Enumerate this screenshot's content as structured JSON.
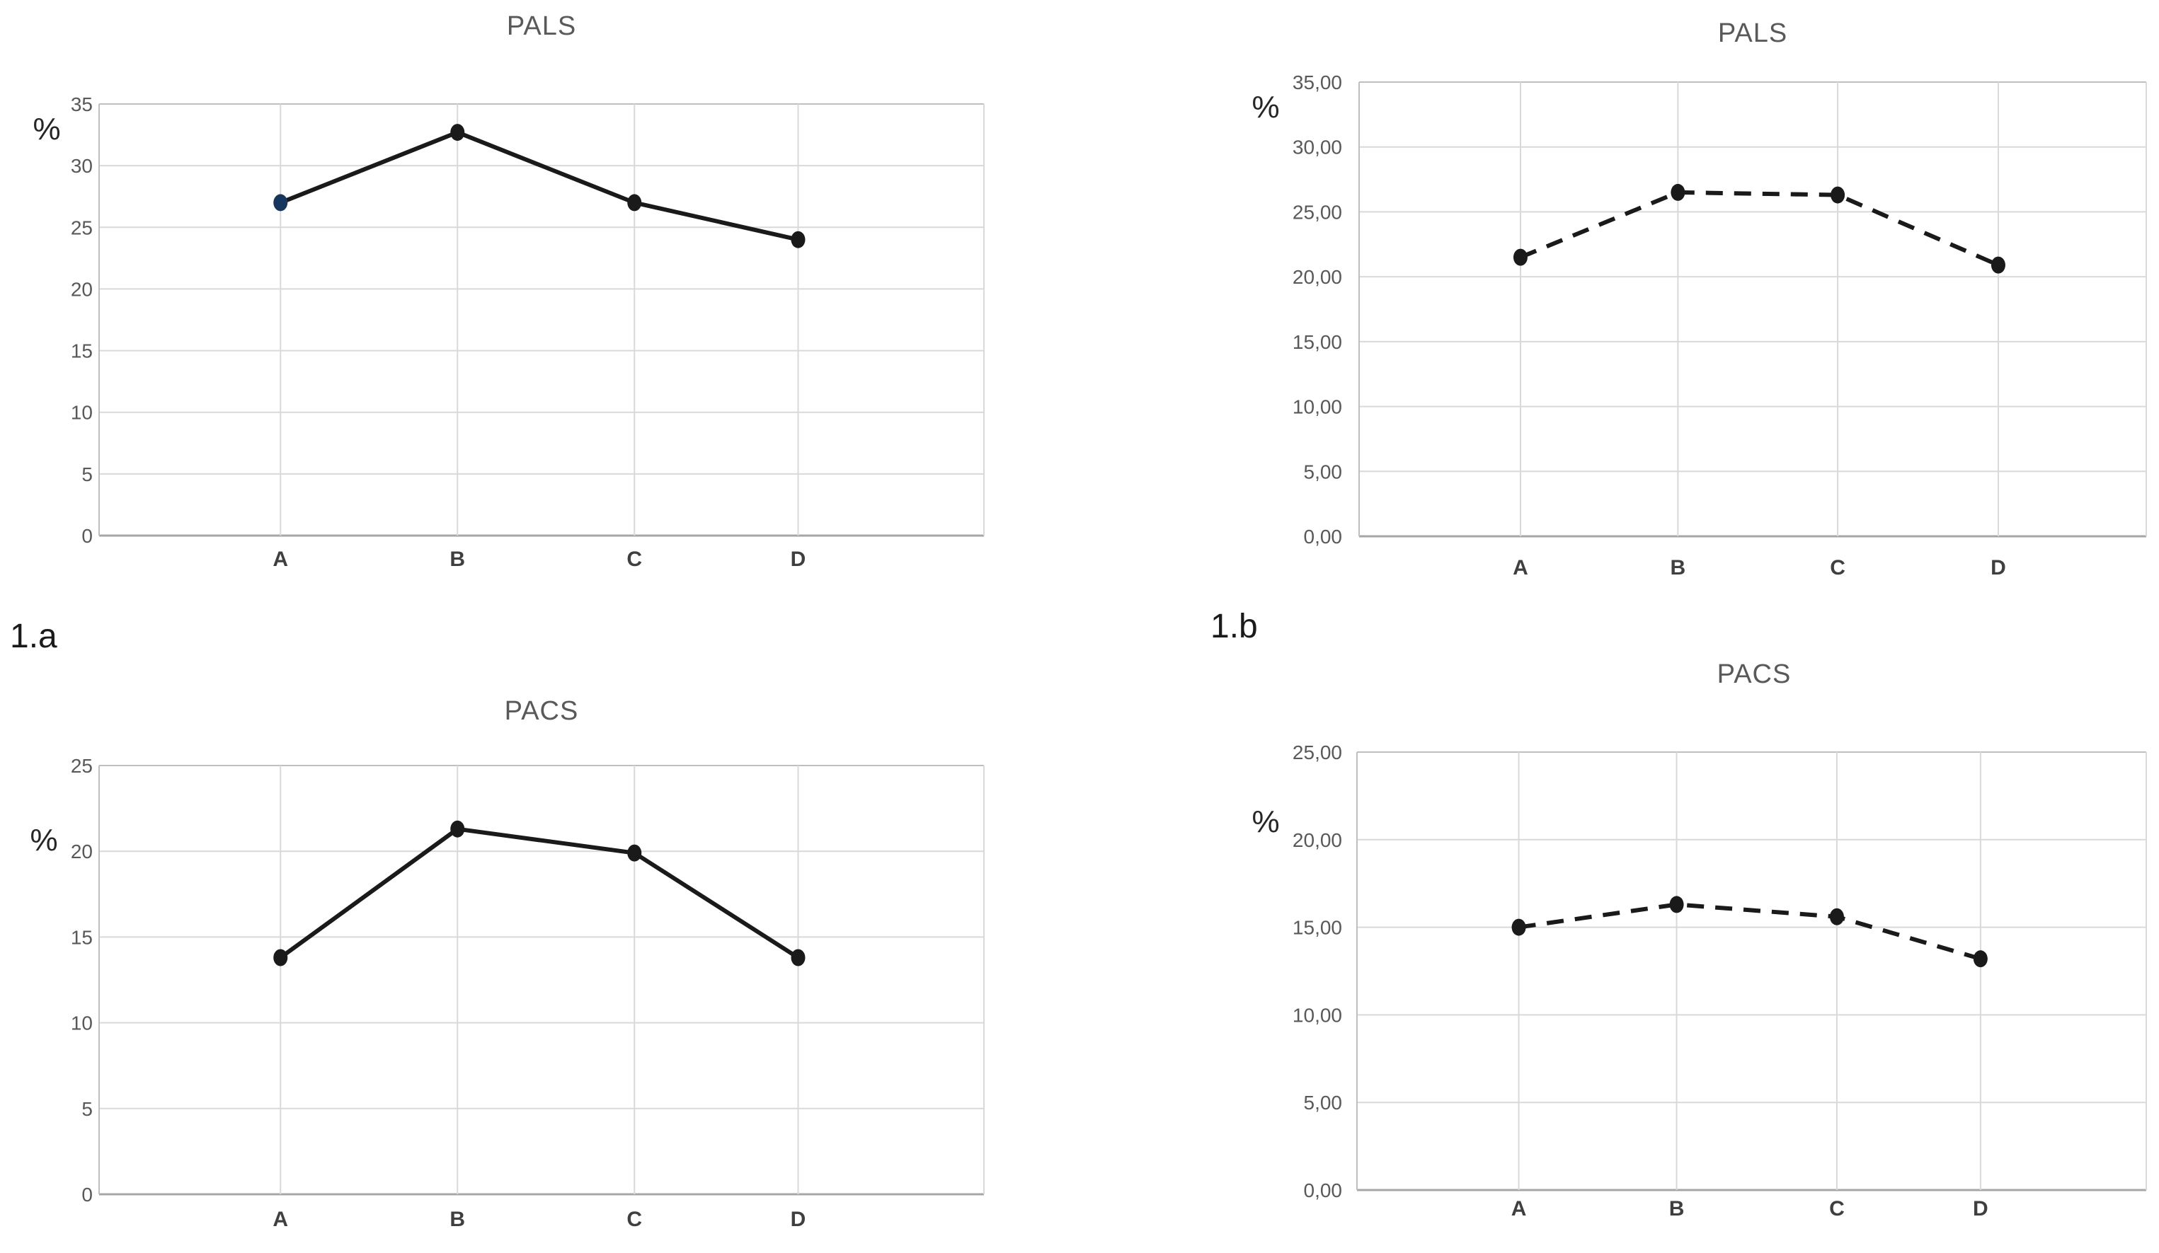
{
  "figure_labels": [
    {
      "text": "1.a"
    },
    {
      "text": "1.b"
    }
  ],
  "chart_data": [
    {
      "id": "pals-solid",
      "type": "line",
      "title": "PALS",
      "ylabel": "%",
      "categories": [
        "A",
        "B",
        "C",
        "D"
      ],
      "values": [
        27.0,
        32.7,
        27.0,
        24.0
      ],
      "ylim": [
        0,
        35
      ],
      "yticks": [
        "0",
        "5",
        "10",
        "15",
        "20",
        "25",
        "30",
        "35"
      ],
      "line_style": "solid",
      "grid": true,
      "legend": "none",
      "line_color": "#1a1a1a",
      "marker_colors": [
        "#17365d",
        "#1a1a1a",
        "#1a1a1a",
        "#1a1a1a"
      ]
    },
    {
      "id": "pals-dashed",
      "type": "line",
      "title": "PALS",
      "ylabel": "%",
      "categories": [
        "A",
        "B",
        "C",
        "D"
      ],
      "values": [
        21.5,
        26.5,
        26.3,
        20.9
      ],
      "ylim": [
        0,
        35
      ],
      "yticks": [
        "0,00",
        "5,00",
        "10,00",
        "15,00",
        "20,00",
        "25,00",
        "30,00",
        "35,00"
      ],
      "line_style": "dashed",
      "grid": true,
      "legend": "none",
      "line_color": "#1a1a1a",
      "marker_colors": [
        "#1a1a1a",
        "#1a1a1a",
        "#1a1a1a",
        "#1a1a1a"
      ]
    },
    {
      "id": "pacs-solid",
      "type": "line",
      "title": "PACS",
      "ylabel": "%",
      "categories": [
        "A",
        "B",
        "C",
        "D"
      ],
      "values": [
        13.8,
        21.3,
        19.9,
        13.8
      ],
      "ylim": [
        0,
        25
      ],
      "yticks": [
        "0",
        "5",
        "10",
        "15",
        "20",
        "25"
      ],
      "line_style": "solid",
      "grid": true,
      "legend": "none",
      "line_color": "#1a1a1a",
      "marker_colors": [
        "#1a1a1a",
        "#1a1a1a",
        "#1a1a1a",
        "#1a1a1a"
      ]
    },
    {
      "id": "pacs-dashed",
      "type": "line",
      "title": "PACS",
      "ylabel": "%",
      "categories": [
        "A",
        "B",
        "C",
        "D"
      ],
      "values": [
        15.0,
        16.3,
        15.6,
        13.2
      ],
      "ylim": [
        0,
        25
      ],
      "yticks": [
        "0,00",
        "5,00",
        "10,00",
        "15,00",
        "20,00",
        "25,00"
      ],
      "line_style": "dashed",
      "grid": true,
      "legend": "none",
      "line_color": "#1a1a1a",
      "marker_colors": [
        "#1a1a1a",
        "#1a1a1a",
        "#1a1a1a",
        "#1a1a1a"
      ]
    }
  ],
  "colors": {
    "gridline": "#d9d9d9",
    "axis_border": "#bfbfbf",
    "axis_bottom": "#a6a6a6",
    "tick_text": "#595959",
    "category_text": "#3f3f3f",
    "title_text": "#595959"
  }
}
